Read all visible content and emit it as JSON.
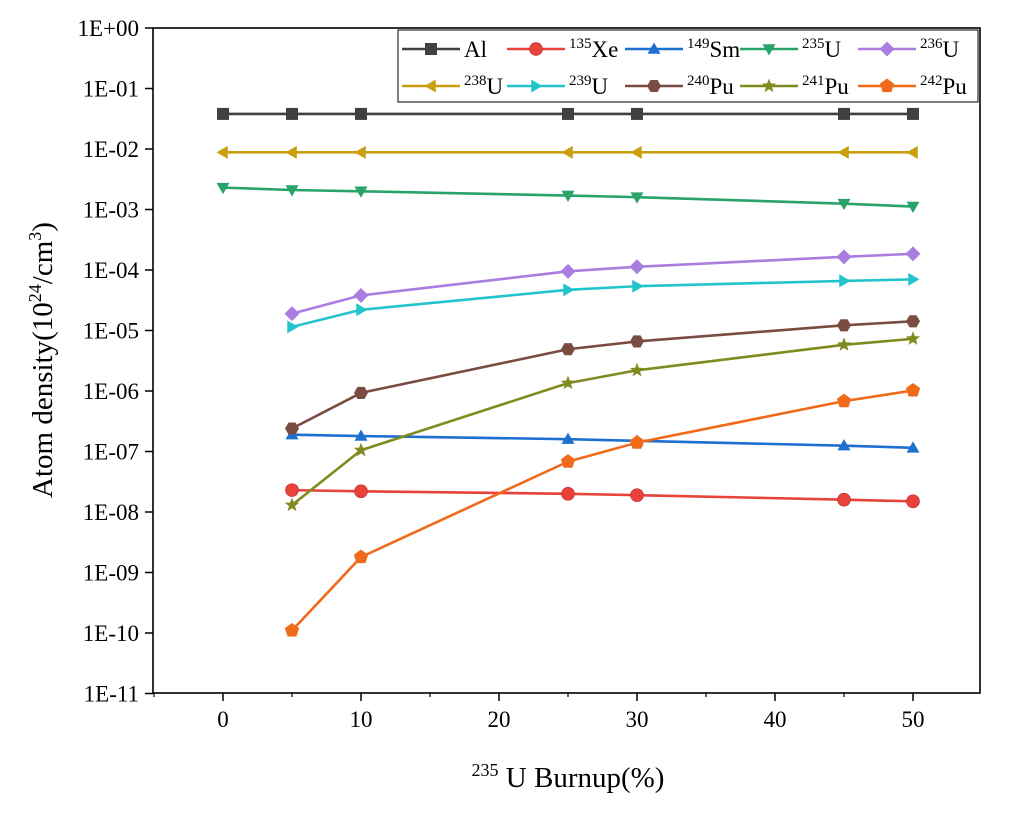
{
  "chart_data": {
    "type": "line",
    "xlabel": {
      "sup": "235",
      "text": "U Burnup(%)"
    },
    "ylabel": {
      "main": "Atom density(10",
      "sup1": "24",
      "mid": "/cm",
      "sup2": "3",
      "end": ")"
    },
    "y_scale": "log",
    "xlim": [
      -5,
      55
    ],
    "ylim": [
      1e-11,
      1
    ],
    "x_ticks": [
      0,
      10,
      20,
      30,
      40,
      50
    ],
    "y_ticks": [
      1e-11,
      1e-10,
      1e-09,
      1e-08,
      1e-07,
      1e-06,
      1e-05,
      0.0001,
      0.001,
      0.01,
      0.1,
      1
    ],
    "y_tick_labels": [
      "1E-11",
      "1E-10",
      "1E-09",
      "1E-08",
      "1E-07",
      "1E-06",
      "1E-05",
      "1E-04",
      "1E-03",
      "1E-02",
      "1E-01",
      "1E+00"
    ],
    "grid": false,
    "legend_position": "top-right",
    "series": [
      {
        "name": "Al",
        "sup": "",
        "label": "Al",
        "color": "#404040",
        "marker": "square",
        "x": [
          0,
          5,
          10,
          25,
          30,
          45,
          50
        ],
        "y": [
          0.038,
          0.038,
          0.038,
          0.038,
          0.038,
          0.038,
          0.038
        ]
      },
      {
        "name": "135Xe",
        "sup": "135",
        "label": "Xe",
        "color": "#e8423b",
        "marker": "circle",
        "x": [
          5,
          10,
          25,
          30,
          45,
          50
        ],
        "y": [
          2.3e-08,
          2.2e-08,
          2e-08,
          1.9e-08,
          1.6e-08,
          1.5e-08
        ]
      },
      {
        "name": "149Sm",
        "sup": "149",
        "label": "Sm",
        "color": "#1f6fd1",
        "marker": "triangle-up",
        "x": [
          5,
          10,
          25,
          30,
          45,
          50
        ],
        "y": [
          1.9e-07,
          1.8e-07,
          1.6e-07,
          1.5e-07,
          1.25e-07,
          1.15e-07
        ]
      },
      {
        "name": "235U",
        "sup": "235",
        "label": "U",
        "color": "#2aa36b",
        "marker": "triangle-down",
        "x": [
          0,
          5,
          10,
          25,
          30,
          45,
          50
        ],
        "y": [
          0.0023,
          0.0021,
          0.002,
          0.0017,
          0.0016,
          0.00125,
          0.00112
        ]
      },
      {
        "name": "236U",
        "sup": "236",
        "label": "U",
        "color": "#a97ee0",
        "marker": "diamond",
        "x": [
          5,
          10,
          25,
          30,
          45,
          50
        ],
        "y": [
          1.9e-05,
          3.8e-05,
          9.5e-05,
          0.000113,
          0.000165,
          0.000185
        ]
      },
      {
        "name": "238U",
        "sup": "238",
        "label": "U",
        "color": "#c8a00e",
        "marker": "triangle-left",
        "x": [
          0,
          5,
          10,
          25,
          30,
          45,
          50
        ],
        "y": [
          0.0088,
          0.0088,
          0.0088,
          0.0088,
          0.0088,
          0.0088,
          0.0088
        ]
      },
      {
        "name": "239U",
        "sup": "239",
        "label": "U",
        "color": "#22c4cc",
        "marker": "triangle-right",
        "x": [
          5,
          10,
          25,
          30,
          45,
          50
        ],
        "y": [
          1.15e-05,
          2.2e-05,
          4.7e-05,
          5.4e-05,
          6.6e-05,
          7e-05
        ]
      },
      {
        "name": "240Pu",
        "sup": "240",
        "label": "Pu",
        "color": "#7a4b41",
        "marker": "hexagon",
        "x": [
          5,
          10,
          25,
          30,
          45,
          50
        ],
        "y": [
          2.4e-07,
          9.3e-07,
          4.9e-06,
          6.6e-06,
          1.22e-05,
          1.42e-05
        ]
      },
      {
        "name": "241Pu",
        "sup": "241",
        "label": "Pu",
        "color": "#808a1f",
        "marker": "star",
        "x": [
          5,
          10,
          25,
          30,
          45,
          50
        ],
        "y": [
          1.3e-08,
          1.05e-07,
          1.35e-06,
          2.2e-06,
          5.8e-06,
          7.3e-06
        ]
      },
      {
        "name": "242Pu",
        "sup": "242",
        "label": "Pu",
        "color": "#f06a1a",
        "marker": "pentagon",
        "x": [
          5,
          10,
          25,
          30,
          45,
          50
        ],
        "y": [
          1.1e-10,
          1.8e-09,
          6.8e-08,
          1.4e-07,
          6.8e-07,
          1.02e-06
        ]
      }
    ]
  }
}
